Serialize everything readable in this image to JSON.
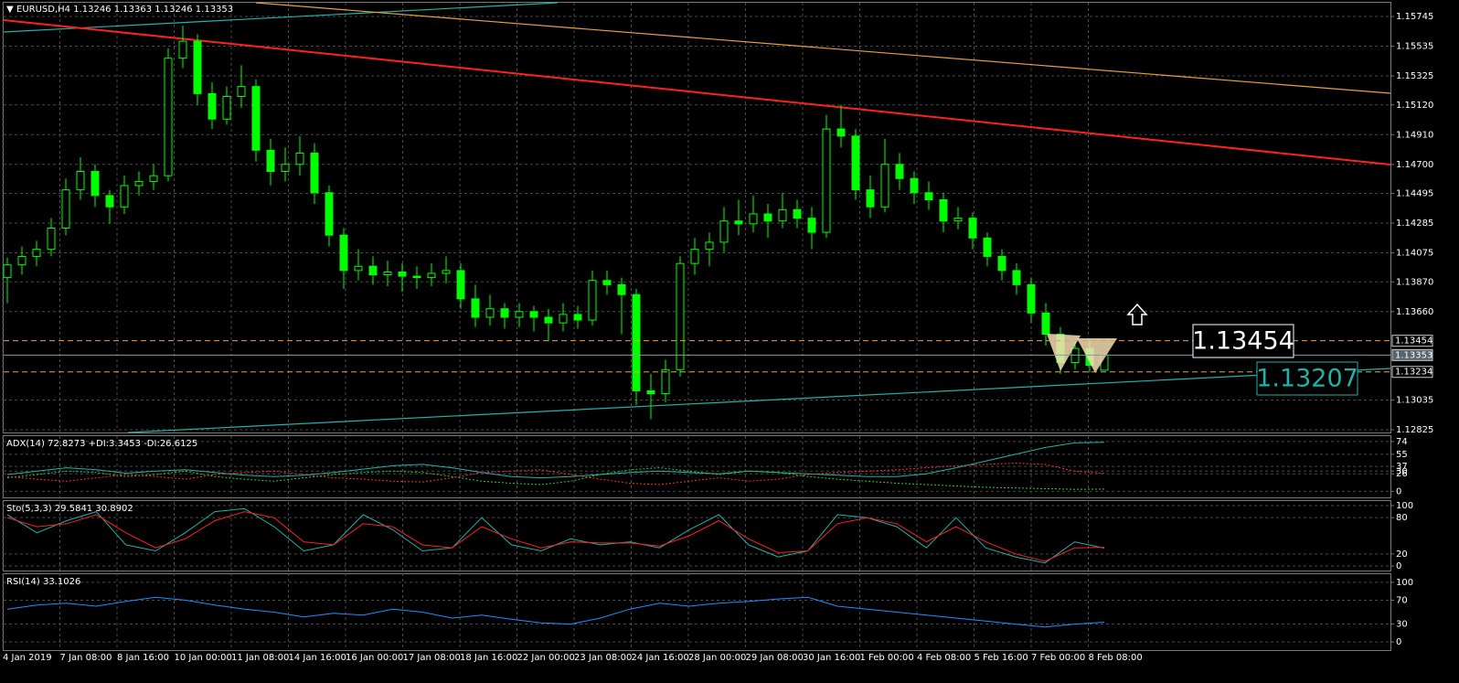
{
  "chart_data": [
    {
      "type": "candlestick",
      "title": "EURUSD,H4  1.13246 1.13363 1.13246 1.13353",
      "open": [
        1.139,
        1.1399,
        1.1405,
        1.141,
        1.1425,
        1.1452,
        1.1465,
        1.1448,
        1.144,
        1.1455,
        1.1458,
        1.1462,
        1.1545,
        1.1557,
        1.152,
        1.1502,
        1.1518,
        1.1525,
        1.148,
        1.1465,
        1.147,
        1.1478,
        1.145,
        1.142,
        1.1395,
        1.1398,
        1.1392,
        1.1394,
        1.1391,
        1.139,
        1.1393,
        1.1395,
        1.1375,
        1.1362,
        1.1368,
        1.1362,
        1.1366,
        1.1362,
        1.1358,
        1.1364,
        1.136,
        1.1388,
        1.1385,
        1.1378,
        1.131,
        1.1308,
        1.1325,
        1.14,
        1.141,
        1.1415,
        1.143,
        1.1428,
        1.1435,
        1.143,
        1.1438,
        1.1432,
        1.1422,
        1.1495,
        1.149,
        1.1452,
        1.144,
        1.147,
        1.146,
        1.145,
        1.1445,
        1.143,
        1.1432,
        1.1418,
        1.1405,
        1.1395,
        1.1385,
        1.1365,
        1.135,
        1.133,
        1.134,
        1.13246
      ],
      "high": [
        1.1404,
        1.1412,
        1.1416,
        1.1432,
        1.146,
        1.1475,
        1.147,
        1.1452,
        1.1462,
        1.1465,
        1.147,
        1.1552,
        1.1568,
        1.1562,
        1.1528,
        1.1525,
        1.154,
        1.153,
        1.1488,
        1.1482,
        1.149,
        1.1485,
        1.1455,
        1.1425,
        1.141,
        1.1405,
        1.1402,
        1.14,
        1.1398,
        1.14,
        1.1405,
        1.14,
        1.1385,
        1.1378,
        1.1372,
        1.1372,
        1.137,
        1.1368,
        1.1372,
        1.137,
        1.1395,
        1.1395,
        1.139,
        1.1382,
        1.1322,
        1.1332,
        1.1405,
        1.1418,
        1.1422,
        1.144,
        1.1445,
        1.1448,
        1.1442,
        1.145,
        1.1445,
        1.144,
        1.1505,
        1.1512,
        1.1495,
        1.1462,
        1.1488,
        1.1478,
        1.1465,
        1.1458,
        1.145,
        1.144,
        1.1436,
        1.1422,
        1.141,
        1.14,
        1.139,
        1.1372,
        1.1355,
        1.1346,
        1.1345,
        1.13363
      ],
      "low": [
        1.1372,
        1.1392,
        1.1398,
        1.1405,
        1.142,
        1.1445,
        1.144,
        1.1428,
        1.1435,
        1.1448,
        1.1452,
        1.1458,
        1.1538,
        1.1512,
        1.1495,
        1.1498,
        1.151,
        1.1472,
        1.1455,
        1.1458,
        1.1462,
        1.1442,
        1.1412,
        1.1382,
        1.1388,
        1.1385,
        1.1384,
        1.138,
        1.1382,
        1.1384,
        1.1386,
        1.1368,
        1.1355,
        1.1356,
        1.1354,
        1.1355,
        1.1352,
        1.1345,
        1.1352,
        1.1354,
        1.1356,
        1.1378,
        1.135,
        1.13,
        1.129,
        1.1302,
        1.132,
        1.1392,
        1.1398,
        1.1408,
        1.142,
        1.1422,
        1.1418,
        1.1425,
        1.1425,
        1.141,
        1.1418,
        1.1482,
        1.1445,
        1.1432,
        1.1436,
        1.1452,
        1.1442,
        1.1438,
        1.1422,
        1.1424,
        1.141,
        1.1398,
        1.1388,
        1.1378,
        1.1358,
        1.1342,
        1.1322,
        1.1325,
        1.1323,
        1.13246
      ],
      "close": [
        1.1399,
        1.1405,
        1.141,
        1.1425,
        1.1452,
        1.1465,
        1.1448,
        1.144,
        1.1455,
        1.1458,
        1.1462,
        1.1545,
        1.1557,
        1.152,
        1.1502,
        1.1518,
        1.1525,
        1.148,
        1.1465,
        1.147,
        1.1478,
        1.145,
        1.142,
        1.1395,
        1.1398,
        1.1392,
        1.1394,
        1.1391,
        1.139,
        1.1393,
        1.1395,
        1.1375,
        1.1362,
        1.1368,
        1.1362,
        1.1366,
        1.1362,
        1.1358,
        1.1364,
        1.136,
        1.1388,
        1.1385,
        1.1378,
        1.131,
        1.1308,
        1.1325,
        1.14,
        1.141,
        1.1415,
        1.143,
        1.1428,
        1.1435,
        1.143,
        1.1438,
        1.1432,
        1.1422,
        1.1495,
        1.149,
        1.1452,
        1.144,
        1.147,
        1.146,
        1.145,
        1.1445,
        1.143,
        1.1432,
        1.1418,
        1.1405,
        1.1395,
        1.1385,
        1.1365,
        1.135,
        1.133,
        1.134,
        1.1328,
        1.13353
      ],
      "bull_color": "#000000",
      "bear_color": "#00ff00",
      "wick_color": "#00ff00",
      "ylim": [
        1.12806,
        1.15842
      ],
      "yticks": [
        1.15745,
        1.15535,
        1.15325,
        {
          "value": 1.1512,
          "label": "1.15120"
        },
        {
          "value": 1.1491,
          "label": "1.14910"
        },
        {
          "value": 1.147,
          "label": "1.14700"
        },
        1.14495,
        1.14285,
        1.14075,
        {
          "value": 1.1387,
          "label": "1.13870"
        },
        {
          "value": 1.1366,
          "label": "1.13660"
        },
        1.13035,
        1.12825
      ],
      "grid": true,
      "levels": [
        {
          "value": 1.13454,
          "color": "#e8a060",
          "dash": true
        },
        {
          "value": 1.13353,
          "color": "#8a9aa8",
          "dash": false
        },
        {
          "value": 1.13234,
          "color": "#e8a060",
          "dash": true
        }
      ],
      "price_labels": [
        {
          "text": "1.13454",
          "color": "#ffffff"
        },
        {
          "text": "1.13207",
          "color": "#20b2aa"
        }
      ],
      "x_labels": [
        "4 Jan 2019",
        "7 Jan 08:00",
        "8 Jan 16:00",
        "10 Jan 00:00",
        "11 Jan 08:00",
        "14 Jan 16:00",
        "16 Jan 00:00",
        "17 Jan 08:00",
        "18 Jan 16:00",
        "22 Jan 00:00",
        "23 Jan 08:00",
        "24 Jan 16:00",
        "28 Jan 00:00",
        "29 Jan 08:00",
        "30 Jan 16:00",
        "1 Feb 00:00",
        "4 Feb 08:00",
        "5 Feb 16:00",
        "7 Feb 00:00",
        "8 Feb 08:00"
      ]
    },
    {
      "type": "line",
      "title": "ADX(14) 72.8273 +DI:3.3453 -DI:26.6125",
      "ylim": [
        -9,
        82
      ],
      "yticks": [
        74,
        55,
        37,
        30,
        26,
        0
      ],
      "series": [
        {
          "color": "#20b2aa",
          "dash": false,
          "values": [
            25,
            30,
            35,
            32,
            27,
            30,
            32,
            28,
            24,
            22,
            24,
            28,
            33,
            38,
            40,
            35,
            28,
            22,
            20,
            22,
            25,
            28,
            30,
            28,
            26,
            30,
            28,
            26,
            24,
            22,
            22,
            26,
            35,
            45,
            55,
            65,
            72,
            72.8
          ]
        },
        {
          "color": "#32cd32",
          "dash": true,
          "values": [
            20,
            25,
            30,
            28,
            22,
            25,
            30,
            22,
            18,
            15,
            20,
            25,
            28,
            30,
            28,
            22,
            15,
            12,
            10,
            15,
            25,
            32,
            35,
            30,
            25,
            30,
            28,
            22,
            18,
            15,
            12,
            10,
            8,
            6,
            5,
            4,
            3,
            3.3
          ]
        },
        {
          "color": "#ff3030",
          "dash": true,
          "values": [
            22,
            18,
            15,
            20,
            25,
            22,
            18,
            25,
            28,
            30,
            25,
            20,
            18,
            15,
            14,
            20,
            28,
            30,
            32,
            25,
            18,
            12,
            10,
            15,
            20,
            15,
            18,
            25,
            28,
            30,
            32,
            35,
            38,
            40,
            42,
            40,
            30,
            26.6
          ]
        }
      ]
    },
    {
      "type": "line",
      "title": "Sto(5,3,3) 29.5841 30.8902",
      "ylim": [
        -7.5,
        107.5
      ],
      "yticks": [
        100,
        80,
        20,
        0
      ],
      "series": [
        {
          "color": "#20b2aa",
          "dash": false,
          "values": [
            85,
            55,
            75,
            90,
            35,
            25,
            55,
            90,
            95,
            65,
            25,
            35,
            85,
            60,
            25,
            30,
            80,
            35,
            25,
            45,
            35,
            40,
            30,
            60,
            85,
            35,
            15,
            25,
            85,
            80,
            65,
            30,
            80,
            30,
            15,
            5,
            40,
            29.6
          ]
        },
        {
          "color": "#ff2020",
          "dash": false,
          "values": [
            80,
            65,
            70,
            85,
            55,
            30,
            45,
            75,
            90,
            80,
            40,
            35,
            70,
            65,
            35,
            30,
            65,
            45,
            30,
            40,
            38,
            38,
            33,
            50,
            75,
            45,
            22,
            25,
            70,
            80,
            70,
            40,
            65,
            40,
            20,
            8,
            30,
            30.9
          ]
        }
      ]
    },
    {
      "type": "line",
      "title": "RSI(14) 33.1026",
      "ylim": [
        -13.6,
        113.6
      ],
      "yticks": [
        100,
        70,
        30,
        0
      ],
      "series": [
        {
          "color": "#1e90ff",
          "dash": false,
          "values": [
            55,
            62,
            65,
            60,
            68,
            75,
            70,
            62,
            55,
            50,
            42,
            48,
            45,
            55,
            50,
            40,
            45,
            38,
            32,
            30,
            40,
            55,
            65,
            60,
            65,
            68,
            72,
            75,
            60,
            55,
            50,
            45,
            40,
            35,
            30,
            25,
            30,
            33.1
          ]
        }
      ]
    }
  ]
}
